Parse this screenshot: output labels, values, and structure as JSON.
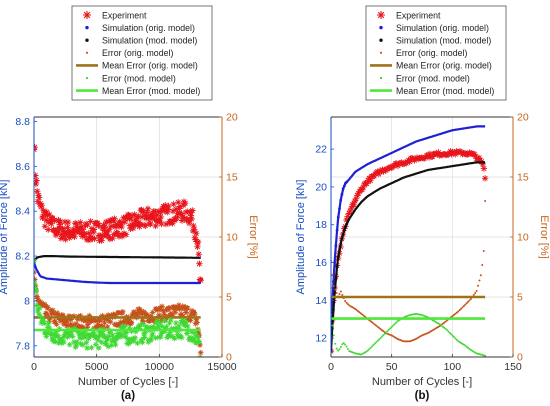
{
  "colors": {
    "experiment": "#e8141b",
    "sim_orig": "#1f1fd6",
    "sim_mod": "#111111",
    "err_orig": "#c6511a",
    "meanerr_orig": "#a0731b",
    "err_mod": "#3fd934",
    "meanerr_mod": "#4fe83a",
    "left_axis": "#1a4ec0",
    "right_axis": "#c8661f",
    "axis_dark": "#333333",
    "grid": "#dedede"
  },
  "chart_data": [
    {
      "type": "scatter",
      "panel_label": "(a)",
      "xlabel": "Number of Cycles [-]",
      "ylabel_left": "Amplitude of Force [kN]",
      "ylabel_right": "Error [%]",
      "xlim": [
        0,
        15000
      ],
      "ylim_left": [
        7.75,
        8.82
      ],
      "ylim_right": [
        0,
        20
      ],
      "xticks": [
        "0",
        "5000",
        "10000",
        "15000"
      ],
      "xtick_values": [
        0,
        5000,
        10000,
        15000
      ],
      "yticks_left": [
        "7.8",
        "8",
        "8.2",
        "8.4",
        "8.6",
        "8.8"
      ],
      "ytick_left_values": [
        7.8,
        8.0,
        8.2,
        8.4,
        8.6,
        8.8
      ],
      "yticks_right": [
        "0",
        "5",
        "10",
        "15",
        "20"
      ],
      "ytick_right_values": [
        0,
        5,
        10,
        15,
        20
      ],
      "grid": true,
      "legend": {
        "placement": "top",
        "entries": [
          {
            "label": "Experiment",
            "marker": "star",
            "color_key": "experiment"
          },
          {
            "label": "Simulation (orig. model)",
            "marker": "dot",
            "color_key": "sim_orig"
          },
          {
            "label": "Simulation (mod. model)",
            "marker": "dot",
            "color_key": "sim_mod"
          },
          {
            "label": "Error (orig. model)",
            "marker": "smalldot",
            "color_key": "err_orig"
          },
          {
            "label": "Mean Error (orig. model)",
            "marker": "line",
            "color_key": "meanerr_orig"
          },
          {
            "label": "Error (mod. model)",
            "marker": "smalldot",
            "color_key": "err_mod"
          },
          {
            "label": "Mean Error (mod. model)",
            "marker": "line",
            "color_key": "meanerr_mod"
          }
        ]
      },
      "series": [
        {
          "key": "experiment",
          "axis": "left",
          "style": "star",
          "x": [
            0,
            100,
            300,
            600,
            1000,
            1500,
            2000,
            3000,
            4000,
            5000,
            6000,
            7000,
            8000,
            9000,
            10000,
            11000,
            12000,
            12500,
            13000,
            13300
          ],
          "y": [
            8.72,
            8.58,
            8.46,
            8.4,
            8.36,
            8.33,
            8.32,
            8.31,
            8.31,
            8.31,
            8.32,
            8.33,
            8.35,
            8.37,
            8.38,
            8.39,
            8.4,
            8.38,
            8.3,
            8.06
          ],
          "band": 0.045
        },
        {
          "key": "sim_orig",
          "axis": "left",
          "style": "line",
          "x": [
            0,
            200,
            500,
            1000,
            2000,
            3000,
            4000,
            5000,
            6000,
            8000,
            10000,
            12000,
            13300
          ],
          "y": [
            8.17,
            8.14,
            8.11,
            8.1,
            8.095,
            8.09,
            8.085,
            8.082,
            8.08,
            8.08,
            8.08,
            8.08,
            8.08
          ]
        },
        {
          "key": "sim_mod",
          "axis": "left",
          "style": "line",
          "x": [
            0,
            300,
            800,
            1500,
            2500,
            4000,
            6000,
            8000,
            10000,
            12000,
            13300
          ],
          "y": [
            8.18,
            8.195,
            8.2,
            8.2,
            8.198,
            8.197,
            8.196,
            8.195,
            8.194,
            8.193,
            8.192
          ]
        },
        {
          "key": "err_orig",
          "axis": "right",
          "style": "band",
          "x": [
            0,
            100,
            400,
            1000,
            2000,
            3000,
            4000,
            5000,
            6000,
            7000,
            8000,
            9000,
            10000,
            11000,
            12000,
            12500,
            13000,
            13300
          ],
          "y": [
            6.5,
            5.8,
            4.5,
            3.6,
            3.1,
            2.9,
            2.9,
            2.9,
            3.0,
            3.2,
            3.4,
            3.5,
            3.6,
            3.7,
            3.8,
            3.6,
            3.0,
            0.5
          ],
          "band": 0.6
        },
        {
          "key": "meanerr_orig",
          "axis": "right",
          "style": "hline",
          "x": [
            0,
            13300
          ],
          "y": [
            3.3,
            3.3
          ]
        },
        {
          "key": "err_mod",
          "axis": "right",
          "style": "band",
          "x": [
            0,
            100,
            400,
            1000,
            2000,
            3000,
            4000,
            5000,
            6000,
            7000,
            8000,
            9000,
            10000,
            11000,
            12000,
            12500,
            13000,
            13300
          ],
          "y": [
            8.0,
            5.5,
            3.5,
            2.3,
            1.8,
            1.6,
            1.5,
            1.5,
            1.6,
            1.8,
            1.9,
            2.0,
            2.2,
            2.3,
            2.4,
            2.2,
            1.5,
            0.2
          ],
          "band": 0.8
        },
        {
          "key": "meanerr_mod",
          "axis": "right",
          "style": "hline",
          "x": [
            0,
            13300
          ],
          "y": [
            2.25,
            2.25
          ]
        }
      ]
    },
    {
      "type": "scatter",
      "panel_label": "(b)",
      "xlabel": "Number of Cycles [-]",
      "ylabel_left": "Amplitude of Force [kN]",
      "ylabel_right": "Error [%]",
      "xlim": [
        0,
        150
      ],
      "ylim_left": [
        11,
        23.7
      ],
      "ylim_right": [
        0,
        20
      ],
      "xticks": [
        "0",
        "50",
        "100",
        "150"
      ],
      "xtick_values": [
        0,
        50,
        100,
        150
      ],
      "yticks_left": [
        "12",
        "14",
        "16",
        "18",
        "20",
        "22"
      ],
      "ytick_left_values": [
        12,
        14,
        16,
        18,
        20,
        22
      ],
      "yticks_right": [
        "0",
        "5",
        "10",
        "15",
        "20"
      ],
      "ytick_right_values": [
        0,
        5,
        10,
        15,
        20
      ],
      "grid": true,
      "legend": {
        "placement": "top",
        "entries": [
          {
            "label": "Experiment",
            "marker": "star",
            "color_key": "experiment"
          },
          {
            "label": "Simulation (orig. model)",
            "marker": "dot",
            "color_key": "sim_orig"
          },
          {
            "label": "Simulation (mod. model)",
            "marker": "dot",
            "color_key": "sim_mod"
          },
          {
            "label": "Error (orig. model)",
            "marker": "smalldot",
            "color_key": "err_orig"
          },
          {
            "label": "Mean Error (orig. model)",
            "marker": "line",
            "color_key": "meanerr_orig"
          },
          {
            "label": "Error (mod. model)",
            "marker": "smalldot",
            "color_key": "err_mod"
          },
          {
            "label": "Mean Error (mod. model)",
            "marker": "line",
            "color_key": "meanerr_mod"
          }
        ]
      },
      "series": [
        {
          "key": "experiment",
          "axis": "left",
          "style": "star",
          "x": [
            0,
            1,
            2,
            3,
            4,
            5,
            6,
            8,
            10,
            12,
            15,
            20,
            25,
            30,
            40,
            50,
            60,
            70,
            80,
            90,
            100,
            110,
            115,
            120,
            124,
            126,
            127
          ],
          "y": [
            11.3,
            13.0,
            14.0,
            14.7,
            15.3,
            15.8,
            16.2,
            16.9,
            17.5,
            18.0,
            18.6,
            19.3,
            19.9,
            20.3,
            20.8,
            21.1,
            21.3,
            21.5,
            21.65,
            21.75,
            21.8,
            21.8,
            21.75,
            21.6,
            21.3,
            21.0,
            20.4
          ],
          "band": 0.1
        },
        {
          "key": "sim_orig",
          "axis": "left",
          "style": "dotline",
          "x": [
            0,
            1,
            2,
            3,
            4,
            5,
            6,
            8,
            10,
            12,
            15,
            20,
            30,
            40,
            50,
            60,
            70,
            80,
            90,
            100,
            110,
            120,
            127
          ],
          "y": [
            12.0,
            13.6,
            15.0,
            16.0,
            16.9,
            17.7,
            18.4,
            19.3,
            19.9,
            20.2,
            20.4,
            20.8,
            21.2,
            21.5,
            21.8,
            22.1,
            22.4,
            22.6,
            22.8,
            23.0,
            23.1,
            23.2,
            23.2
          ]
        },
        {
          "key": "sim_mod",
          "axis": "left",
          "style": "dotline",
          "x": [
            0,
            1,
            2,
            3,
            4,
            5,
            6,
            8,
            10,
            12,
            15,
            20,
            25,
            30,
            40,
            50,
            60,
            70,
            80,
            90,
            100,
            110,
            120,
            127
          ],
          "y": [
            11.3,
            12.5,
            13.5,
            14.4,
            15.1,
            15.8,
            16.3,
            17.0,
            17.5,
            17.9,
            18.3,
            18.8,
            19.2,
            19.5,
            19.9,
            20.2,
            20.5,
            20.7,
            20.9,
            21.0,
            21.1,
            21.2,
            21.3,
            21.3
          ]
        },
        {
          "key": "err_orig",
          "axis": "right",
          "style": "dots",
          "x": [
            0,
            2,
            4,
            6,
            8,
            10,
            12,
            15,
            20,
            25,
            30,
            35,
            40,
            45,
            50,
            55,
            60,
            65,
            70,
            75,
            80,
            85,
            90,
            95,
            100,
            105,
            110,
            115,
            120,
            124,
            126,
            127
          ],
          "y": [
            8.0,
            6.0,
            5.5,
            5.0,
            5.5,
            5.0,
            4.6,
            4.3,
            4.0,
            3.6,
            3.2,
            2.8,
            2.4,
            2.0,
            1.8,
            1.5,
            1.3,
            1.3,
            1.5,
            1.8,
            2.0,
            2.3,
            2.6,
            3.0,
            3.4,
            3.8,
            4.3,
            4.8,
            5.5,
            7.0,
            9.0,
            13.0
          ]
        },
        {
          "key": "meanerr_orig",
          "axis": "right",
          "style": "hline",
          "x": [
            0,
            127
          ],
          "y": [
            5.0,
            5.0
          ]
        },
        {
          "key": "err_mod",
          "axis": "right",
          "style": "dots",
          "x": [
            0,
            2,
            4,
            6,
            8,
            10,
            12,
            15,
            20,
            25,
            30,
            35,
            40,
            45,
            50,
            55,
            60,
            65,
            70,
            75,
            80,
            85,
            90,
            95,
            100,
            105,
            110,
            115,
            120,
            124,
            127
          ],
          "y": [
            3.5,
            2.0,
            0.8,
            0.5,
            0.8,
            1.2,
            1.0,
            0.5,
            0.3,
            0.2,
            0.5,
            1.0,
            1.5,
            2.0,
            2.5,
            3.0,
            3.3,
            3.5,
            3.6,
            3.5,
            3.3,
            3.0,
            2.7,
            2.3,
            1.8,
            1.3,
            1.0,
            0.6,
            0.3,
            0.2,
            0.1
          ]
        },
        {
          "key": "meanerr_mod",
          "axis": "right",
          "style": "hline",
          "x": [
            0,
            127
          ],
          "y": [
            3.2,
            3.2
          ]
        }
      ]
    }
  ]
}
